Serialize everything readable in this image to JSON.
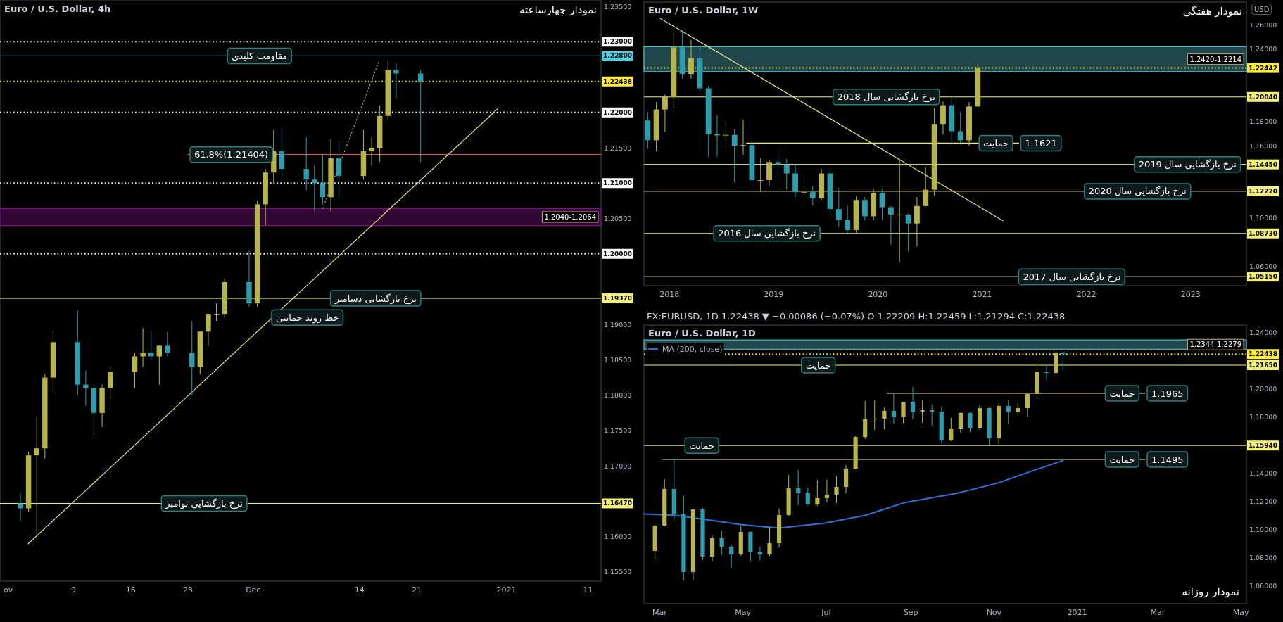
{
  "chart_data": [
    {
      "type": "candlestick",
      "title": "Euro / U.S. Dollar, 4h",
      "subtitle": "نمودار چهارساعته",
      "x": [
        "2020-11-02T12:00",
        "2020-11-03T12:00",
        "2020-11-04T12:00",
        "2020-11-05T12:00",
        "2020-11-06T12:00",
        "2020-11-09T12:00",
        "2020-11-10T12:00",
        "2020-11-11T12:00",
        "2020-11-12T12:00",
        "2020-11-13T12:00",
        "2020-11-16T12:00",
        "2020-11-17T12:00",
        "2020-11-18T12:00",
        "2020-11-19T12:00",
        "2020-11-20T12:00",
        "2020-11-23T12:00",
        "2020-11-24T12:00",
        "2020-11-25T12:00",
        "2020-11-26T12:00",
        "2020-11-27T12:00",
        "2020-11-30T12:00",
        "2020-12-01T12:00",
        "2020-12-02T12:00",
        "2020-12-03T12:00",
        "2020-12-04T12:00",
        "2020-12-07T12:00",
        "2020-12-08T12:00",
        "2020-12-09T12:00",
        "2020-12-10T12:00",
        "2020-12-11T12:00",
        "2020-12-14T12:00",
        "2020-12-15T12:00",
        "2020-12-16T12:00",
        "2020-12-17T12:00",
        "2020-12-18T12:00",
        "2020-12-21T12:00"
      ],
      "ohlc": [
        [
          1.1647,
          1.1661,
          1.1622,
          1.164
        ],
        [
          1.164,
          1.172,
          1.1635,
          1.1715
        ],
        [
          1.1715,
          1.177,
          1.1603,
          1.1725
        ],
        [
          1.1725,
          1.183,
          1.171,
          1.1825
        ],
        [
          1.1825,
          1.189,
          1.1805,
          1.1875
        ],
        [
          1.1875,
          1.192,
          1.18,
          1.1815
        ],
        [
          1.1815,
          1.1835,
          1.1785,
          1.181
        ],
        [
          1.181,
          1.1815,
          1.1745,
          1.1775
        ],
        [
          1.1775,
          1.1815,
          1.1755,
          1.181
        ],
        [
          1.181,
          1.184,
          1.1795,
          1.1833
        ],
        [
          1.1833,
          1.186,
          1.181,
          1.1855
        ],
        [
          1.1855,
          1.1895,
          1.184,
          1.186
        ],
        [
          1.186,
          1.189,
          1.185,
          1.1855
        ],
        [
          1.1855,
          1.187,
          1.1815,
          1.187
        ],
        [
          1.187,
          1.189,
          1.1855,
          1.186
        ],
        [
          1.186,
          1.1905,
          1.18,
          1.184
        ],
        [
          1.184,
          1.189,
          1.183,
          1.189
        ],
        [
          1.189,
          1.1915,
          1.187,
          1.1915
        ],
        [
          1.1915,
          1.193,
          1.1905,
          1.1915
        ],
        [
          1.1915,
          1.1965,
          1.191,
          1.196
        ],
        [
          1.196,
          1.2005,
          1.1925,
          1.193
        ],
        [
          1.193,
          1.2075,
          1.1925,
          1.207
        ],
        [
          1.207,
          1.212,
          1.204,
          1.2115
        ],
        [
          1.2115,
          1.2175,
          1.21,
          1.2145
        ],
        [
          1.2145,
          1.2178,
          1.211,
          1.212
        ],
        [
          1.212,
          1.2165,
          1.209,
          1.2105
        ],
        [
          1.2105,
          1.2125,
          1.206,
          1.21
        ],
        [
          1.21,
          1.214,
          1.207,
          1.208
        ],
        [
          1.208,
          1.2162,
          1.206,
          1.2135
        ],
        [
          1.2135,
          1.216,
          1.208,
          1.211
        ],
        [
          1.211,
          1.2175,
          1.2105,
          1.2145
        ],
        [
          1.2145,
          1.2165,
          1.2125,
          1.215
        ],
        [
          1.215,
          1.221,
          1.213,
          1.2195
        ],
        [
          1.2195,
          1.2273,
          1.219,
          1.226
        ],
        [
          1.226,
          1.227,
          1.222,
          1.2255
        ],
        [
          1.2255,
          1.226,
          1.213,
          1.22438
        ]
      ],
      "xlim": [
        "2020-10-31T00:00",
        "2021-01-12T14:00"
      ],
      "xticks": [
        {
          "value": "2020-11-01",
          "label": "ov"
        },
        {
          "value": "2020-11-09",
          "label": "9"
        },
        {
          "value": "2020-11-16",
          "label": "16"
        },
        {
          "value": "2020-11-23",
          "label": "23"
        },
        {
          "value": "2020-12-01",
          "label": "Dec"
        },
        {
          "value": "2020-12-14",
          "label": "14"
        },
        {
          "value": "2020-12-21",
          "label": "21"
        },
        {
          "value": "2021-01-01",
          "label": "2021"
        },
        {
          "value": "2021-01-11",
          "label": "11"
        }
      ],
      "ylim": [
        1.1537,
        1.2358
      ],
      "yticks": [
        {
          "value": 1.155,
          "label": "1.15500"
        },
        {
          "value": 1.16,
          "label": "1.16000"
        },
        {
          "value": 1.17,
          "label": "1.17000"
        },
        {
          "value": 1.175,
          "label": "1.17500"
        },
        {
          "value": 1.18,
          "label": "1.18000"
        },
        {
          "value": 1.185,
          "label": "1.18500"
        },
        {
          "value": 1.19,
          "label": "1.19000"
        },
        {
          "value": 1.205,
          "label": "1.20500"
        },
        {
          "value": 1.215,
          "label": "1.21500"
        },
        {
          "value": 1.235,
          "label": "1.23500"
        }
      ],
      "ref_lines": [
        {
          "axis": "y",
          "value": 1.23,
          "label": "1.23000",
          "color": "#ffffff",
          "line_style": "dotted"
        },
        {
          "axis": "y",
          "value": 1.228,
          "label": "1.22800",
          "color": "#4dd0e1",
          "line_style": "solid"
        },
        {
          "axis": "y",
          "value": 1.22438,
          "label": "1.22438",
          "color": "#ffeb3b",
          "line_style": "dotted"
        },
        {
          "axis": "y",
          "value": 1.22,
          "label": "1.22000",
          "color": "#ffffff",
          "line_style": "dotted"
        },
        {
          "axis": "y",
          "value": 1.21,
          "label": "1.21000",
          "color": "#ffffff",
          "line_style": "dotted"
        },
        {
          "axis": "y",
          "value": 1.2,
          "label": "1.20000",
          "color": "#ffffff",
          "line_style": "dotted"
        },
        {
          "axis": "y",
          "value": 1.1937,
          "label": "1.19370",
          "color": "#f5f07a",
          "line_style": "solid"
        },
        {
          "axis": "y",
          "value": 1.1647,
          "label": "1.16470",
          "color": "#f5f07a",
          "line_style": "solid"
        }
      ],
      "bands": [
        {
          "axis": "y",
          "from": 1.204,
          "to": 1.2064,
          "label": "1.2040-1.2064",
          "color": "#7b1283"
        }
      ],
      "series": [
        {
          "type": "line",
          "x": [
            "2020-11-03T11:00",
            "2020-12-30T22:00"
          ],
          "values": [
            1.159,
            1.2205
          ],
          "color": "#e6e68a",
          "line_style": "solid"
        },
        {
          "type": "line",
          "x": [
            "2020-12-09T12:00",
            "2020-12-16T10:00"
          ],
          "values": [
            1.2064,
            1.2273
          ],
          "color": "#9e9e9e",
          "line_style": "dotted"
        },
        {
          "type": "line",
          "x": [
            "2020-11-23T00:00",
            "2021-01-12T14:00"
          ],
          "values": [
            1.21404,
            1.21404
          ],
          "color": "#e04e5e",
          "line_style": "solid"
        }
      ],
      "annotations": [
        {
          "text": "مقاومت کلیدی",
          "x": "2020-11-27T14:00",
          "y": 1.228
        },
        {
          "text": "61.8%(1.21404)",
          "x": "2020-11-23T00:00",
          "y": 1.21404
        },
        {
          "text": "نرخ بازگشایی دسامبر",
          "x": "2020-12-10T05:00",
          "y": 1.1937
        },
        {
          "text": "خط روند حمایتی",
          "x": "2020-12-03T00:00",
          "y": 1.191
        },
        {
          "text": "نرخ بازگشایی نوامبر",
          "x": "2020-11-19T12:00",
          "y": 1.1647
        }
      ]
    },
    {
      "type": "candlestick",
      "title": "Euro / U.S. Dollar, 1W",
      "subtitle": "نمودار هفتگی",
      "ylabel": "USD",
      "x": [
        2017.792,
        2017.875,
        2017.958,
        2018.042,
        2018.125,
        2018.208,
        2018.292,
        2018.375,
        2018.458,
        2018.542,
        2018.625,
        2018.708,
        2018.792,
        2018.875,
        2018.958,
        2019.042,
        2019.125,
        2019.208,
        2019.292,
        2019.375,
        2019.458,
        2019.542,
        2019.625,
        2019.708,
        2019.792,
        2019.875,
        2019.958,
        2020.042,
        2020.125,
        2020.208,
        2020.292,
        2020.375,
        2020.458,
        2020.542,
        2020.625,
        2020.708,
        2020.792,
        2020.875,
        2020.958
      ],
      "ohlc": [
        [
          1.181,
          1.188,
          1.1575,
          1.1645
        ],
        [
          1.1645,
          1.196,
          1.1555,
          1.19
        ],
        [
          1.19,
          1.2025,
          1.1715,
          1.2005
        ],
        [
          1.2005,
          1.2535,
          1.1915,
          1.2415
        ],
        [
          1.2415,
          1.2555,
          1.2155,
          1.2195
        ],
        [
          1.2195,
          1.2475,
          1.2155,
          1.2325
        ],
        [
          1.2325,
          1.2415,
          1.2055,
          1.2075
        ],
        [
          1.2075,
          1.2095,
          1.151,
          1.1695
        ],
        [
          1.1695,
          1.185,
          1.151,
          1.1685
        ],
        [
          1.1685,
          1.179,
          1.1575,
          1.169
        ],
        [
          1.169,
          1.1735,
          1.13,
          1.16
        ],
        [
          1.16,
          1.1815,
          1.1525,
          1.1605
        ],
        [
          1.1605,
          1.1625,
          1.13,
          1.1315
        ],
        [
          1.1315,
          1.15,
          1.1215,
          1.1315
        ],
        [
          1.1315,
          1.1485,
          1.127,
          1.1465
        ],
        [
          1.1465,
          1.157,
          1.129,
          1.1445
        ],
        [
          1.1445,
          1.149,
          1.1235,
          1.137
        ],
        [
          1.137,
          1.145,
          1.1175,
          1.1215
        ],
        [
          1.1215,
          1.1325,
          1.111,
          1.1215
        ],
        [
          1.1215,
          1.1265,
          1.1105,
          1.1165
        ],
        [
          1.1165,
          1.141,
          1.115,
          1.137
        ],
        [
          1.137,
          1.141,
          1.1025,
          1.1075
        ],
        [
          1.1075,
          1.125,
          1.0925,
          1.0985
        ],
        [
          1.0985,
          1.111,
          1.088,
          1.09
        ],
        [
          1.09,
          1.118,
          1.088,
          1.115
        ],
        [
          1.115,
          1.1175,
          1.098,
          1.1015
        ],
        [
          1.1015,
          1.124,
          1.098,
          1.121
        ],
        [
          1.121,
          1.124,
          1.099,
          1.109
        ],
        [
          1.109,
          1.11,
          1.078,
          1.103
        ],
        [
          1.103,
          1.1495,
          1.0635,
          1.103
        ],
        [
          1.103,
          1.104,
          1.0725,
          1.0955
        ],
        [
          1.0955,
          1.1175,
          1.0765,
          1.11
        ],
        [
          1.11,
          1.142,
          1.1095,
          1.1235
        ],
        [
          1.1235,
          1.191,
          1.1185,
          1.178
        ],
        [
          1.178,
          1.1965,
          1.1695,
          1.1935
        ],
        [
          1.1935,
          1.201,
          1.161,
          1.172
        ],
        [
          1.172,
          1.188,
          1.161,
          1.1645
        ],
        [
          1.1645,
          1.196,
          1.16,
          1.1925
        ],
        [
          1.1925,
          1.2273,
          1.192,
          1.22442
        ]
      ],
      "xlim": [
        2017.756,
        2023.535
      ],
      "xticks": [
        2018,
        2019,
        2020,
        2021,
        2022,
        2023
      ],
      "ylim": [
        1.044,
        1.279
      ],
      "yticks": [
        {
          "value": 1.06,
          "label": "1.06000"
        },
        {
          "value": 1.1,
          "label": "1.10000"
        },
        {
          "value": 1.16,
          "label": "1.16000"
        },
        {
          "value": 1.18,
          "label": "1.18000"
        },
        {
          "value": 1.24,
          "label": "1.24000"
        },
        {
          "value": 1.26,
          "label": "1.26000"
        }
      ],
      "ref_lines": [
        {
          "axis": "y",
          "value": 1.22442,
          "label": "1.22442",
          "color": "#ffeb3b",
          "line_style": "dotted"
        },
        {
          "axis": "y",
          "value": 1.2004,
          "label": "1.20040",
          "color": "#f5f07a",
          "line_style": "solid"
        },
        {
          "axis": "y",
          "value": 1.1445,
          "label": "1.14450",
          "color": "#f5f07a",
          "line_style": "solid"
        },
        {
          "axis": "y",
          "value": 1.1222,
          "label": "1.12220",
          "color": "#f5f07a",
          "line_style": "solid"
        },
        {
          "axis": "y",
          "value": 1.0873,
          "label": "1.08730",
          "color": "#f5f07a",
          "line_style": "solid"
        },
        {
          "axis": "y",
          "value": 1.0515,
          "label": "1.05150",
          "color": "#f5f07a",
          "line_style": "solid"
        }
      ],
      "bands": [
        {
          "axis": "y",
          "from": 1.2214,
          "to": 1.242,
          "label": "1.2420-1.2214",
          "color": "#4fb3bf"
        }
      ],
      "series": [
        {
          "type": "line",
          "x": [
            2017.913,
            2021.2
          ],
          "values": [
            1.2655,
            1.0978
          ],
          "color": "#e6e68a",
          "line_style": "solid"
        },
        {
          "type": "line",
          "x": [
            2018.74,
            2021.35
          ],
          "values": [
            1.1621,
            1.1621
          ],
          "color": "#e6e68a",
          "line_style": "solid"
        }
      ],
      "annotations": [
        {
          "text": "نرخ بازگشایی سال 2018",
          "x": 2019.55,
          "y": 1.2004
        },
        {
          "text": "1.1621",
          "x": 2021.35,
          "y": 1.1621
        },
        {
          "text": "حمایت",
          "x": 2020.95,
          "y": 1.1621
        },
        {
          "text": "نرخ بازگشایی سال 2019",
          "x": 2022.44,
          "y": 1.1445
        },
        {
          "text": "نرخ بازگشایی سال 2016",
          "x": 2018.405,
          "y": 1.0873
        },
        {
          "text": "نرخ بازگشایی سال 2020",
          "x": 2021.96,
          "y": 1.1222
        },
        {
          "text": "نرخ بازگشایی سال 2017",
          "x": 2021.33,
          "y": 1.0515
        }
      ]
    },
    {
      "type": "candlestick",
      "title": "Euro / U.S. Dollar, 1D",
      "legend": "top left",
      "x": [
        "2020-02-26T12:00",
        "2020-03-04T12:00",
        "2020-03-11T12:00",
        "2020-03-18T12:00",
        "2020-03-25T12:00",
        "2020-04-01T12:00",
        "2020-04-08T12:00",
        "2020-04-15T12:00",
        "2020-04-22T12:00",
        "2020-04-29T12:00",
        "2020-05-06T12:00",
        "2020-05-13T12:00",
        "2020-05-20T12:00",
        "2020-05-27T12:00",
        "2020-06-03T12:00",
        "2020-06-10T12:00",
        "2020-06-17T12:00",
        "2020-06-24T12:00",
        "2020-07-01T12:00",
        "2020-07-08T12:00",
        "2020-07-15T12:00",
        "2020-07-22T12:00",
        "2020-07-29T12:00",
        "2020-08-05T12:00",
        "2020-08-12T12:00",
        "2020-08-19T12:00",
        "2020-08-26T12:00",
        "2020-09-02T12:00",
        "2020-09-09T12:00",
        "2020-09-16T12:00",
        "2020-09-23T12:00",
        "2020-09-30T12:00",
        "2020-10-07T12:00",
        "2020-10-14T12:00",
        "2020-10-21T12:00",
        "2020-10-28T12:00",
        "2020-11-04T12:00",
        "2020-11-11T12:00",
        "2020-11-18T12:00",
        "2020-11-25T12:00",
        "2020-12-02T12:00",
        "2020-12-09T12:00",
        "2020-12-16T12:00",
        "2020-12-21T12:00"
      ],
      "ohlc": [
        [
          1.0845,
          1.103,
          1.0785,
          1.1025
        ],
        [
          1.1025,
          1.1355,
          1.102,
          1.1285
        ],
        [
          1.1285,
          1.1495,
          1.1055,
          1.1105
        ],
        [
          1.1105,
          1.1235,
          1.0635,
          1.0695
        ],
        [
          1.0695,
          1.1145,
          1.0636,
          1.114
        ],
        [
          1.114,
          1.115,
          1.078,
          1.0805
        ],
        [
          1.0805,
          1.0955,
          1.077,
          1.0935
        ],
        [
          1.0935,
          1.099,
          1.0815,
          1.0875
        ],
        [
          1.0875,
          1.089,
          1.0725,
          1.082
        ],
        [
          1.082,
          1.102,
          1.081,
          1.098
        ],
        [
          1.098,
          1.0985,
          1.077,
          1.084
        ],
        [
          1.084,
          1.0875,
          1.0775,
          1.082
        ],
        [
          1.082,
          1.101,
          1.081,
          1.09
        ],
        [
          1.09,
          1.1145,
          1.087,
          1.11
        ],
        [
          1.11,
          1.1385,
          1.1095,
          1.129
        ],
        [
          1.129,
          1.142,
          1.117,
          1.1255
        ],
        [
          1.1255,
          1.1295,
          1.117,
          1.1175
        ],
        [
          1.1175,
          1.135,
          1.1165,
          1.122
        ],
        [
          1.122,
          1.135,
          1.119,
          1.1245
        ],
        [
          1.1245,
          1.1375,
          1.1185,
          1.13
        ],
        [
          1.13,
          1.1455,
          1.1255,
          1.143
        ],
        [
          1.143,
          1.166,
          1.1425,
          1.1655
        ],
        [
          1.1655,
          1.191,
          1.164,
          1.178
        ],
        [
          1.178,
          1.1915,
          1.1705,
          1.1785
        ],
        [
          1.1785,
          1.1865,
          1.171,
          1.184
        ],
        [
          1.184,
          1.1965,
          1.175,
          1.1795
        ],
        [
          1.1795,
          1.1905,
          1.1755,
          1.1905
        ],
        [
          1.1905,
          1.2011,
          1.178,
          1.1835
        ],
        [
          1.1835,
          1.1915,
          1.1755,
          1.1845
        ],
        [
          1.1845,
          1.1885,
          1.1735,
          1.1835
        ],
        [
          1.1835,
          1.187,
          1.1612,
          1.163
        ],
        [
          1.163,
          1.179,
          1.1625,
          1.1715
        ],
        [
          1.1715,
          1.183,
          1.1685,
          1.1825
        ],
        [
          1.1825,
          1.183,
          1.169,
          1.172
        ],
        [
          1.172,
          1.188,
          1.1705,
          1.186
        ],
        [
          1.186,
          1.187,
          1.1602,
          1.1645
        ],
        [
          1.1645,
          1.189,
          1.1603,
          1.1875
        ],
        [
          1.1875,
          1.192,
          1.1745,
          1.1833
        ],
        [
          1.1833,
          1.1895,
          1.181,
          1.186
        ],
        [
          1.186,
          1.1965,
          1.18,
          1.196
        ],
        [
          1.196,
          1.2178,
          1.1925,
          1.212
        ],
        [
          1.212,
          1.2165,
          1.206,
          1.211
        ],
        [
          1.211,
          1.2273,
          1.2105,
          1.2255
        ],
        [
          1.2255,
          1.226,
          1.213,
          1.22438
        ]
      ],
      "xlim": [
        "2020-02-18T10:00",
        "2021-05-05"
      ],
      "xticks": [
        {
          "value": "2020-03-01",
          "label": "Mar"
        },
        {
          "value": "2020-05-01",
          "label": "May"
        },
        {
          "value": "2020-07-01",
          "label": "Jul"
        },
        {
          "value": "2020-09-01",
          "label": "Sep"
        },
        {
          "value": "2020-11-01",
          "label": "Nov"
        },
        {
          "value": "2021-01-01",
          "label": "2021"
        },
        {
          "value": "2021-03-01",
          "label": "Mar"
        },
        {
          "value": "2021-05-01",
          "label": "May"
        }
      ],
      "ylim": [
        1.047,
        1.245
      ],
      "yticks": [
        {
          "value": 1.06,
          "label": "1.06000"
        },
        {
          "value": 1.08,
          "label": "1.08000"
        },
        {
          "value": 1.1,
          "label": "1.10000"
        },
        {
          "value": 1.12,
          "label": "1.12000"
        },
        {
          "value": 1.14,
          "label": "1.14000"
        },
        {
          "value": 1.18,
          "label": "1.18000"
        },
        {
          "value": 1.2,
          "label": "1.20000"
        },
        {
          "value": 1.24,
          "label": "1.24000"
        }
      ],
      "ref_lines": [
        {
          "axis": "y",
          "value": 1.22438,
          "label": "1.22438",
          "color": "#ffeb3b",
          "line_style": "dotted"
        },
        {
          "axis": "y",
          "value": 1.2165,
          "label": "1.21650",
          "color": "#f5f07a",
          "line_style": "solid"
        },
        {
          "axis": "y",
          "value": 1.1594,
          "label": "1.15940",
          "color": "#f5f07a",
          "line_style": "solid"
        }
      ],
      "bands": [
        {
          "axis": "y",
          "from": 1.2279,
          "to": 1.2344,
          "label": "1.2344-1.2279",
          "color": "#4fb3bf"
        }
      ],
      "series": [
        {
          "type": "line",
          "name": "MA (200, close)",
          "color": "#2f6fd6",
          "line_style": "solid",
          "x": [
            "2020-02-18T10:00",
            "2020-03-12T14:00",
            "2020-04-30T00:00",
            "2020-05-27T12:00",
            "2020-06-30T00:00",
            "2020-07-30T00:00",
            "2020-08-27T00:00",
            "2020-10-05T00:00",
            "2020-11-04T00:00",
            "2020-11-27T00:00",
            "2020-12-21T12:00"
          ],
          "values": [
            1.1108,
            1.1099,
            1.1031,
            1.1008,
            1.1043,
            1.1099,
            1.1187,
            1.1255,
            1.1328,
            1.1407,
            1.1487
          ]
        },
        {
          "type": "line",
          "x": [
            "2020-08-14T14:00",
            "2021-02-19T17:00"
          ],
          "values": [
            1.1965,
            1.1965
          ],
          "color": "#e6e68a",
          "line_style": "solid"
        },
        {
          "type": "line",
          "x": [
            "2020-03-03T02:00",
            "2021-02-19T17:00"
          ],
          "values": [
            1.1495,
            1.1495
          ],
          "color": "#e6e68a",
          "line_style": "solid"
        }
      ],
      "annotations": [
        "FX:EURUSD, 1D 1.22438 ▼ −0.00086 (−0.07%) O:1.22209 H:1.22459 L:1.21294 C:1.22438",
        "نمودار روزانه",
        {
          "text": "حمایت",
          "x": "2020-06-11T07:00",
          "y": 1.2165
        },
        {
          "text": "حمایت",
          "x": "2020-03-17T22:00",
          "y": 1.1594
        },
        {
          "text": "1.1965",
          "x": "2021-02-19T17:00",
          "y": 1.1965
        },
        {
          "text": "حمایت",
          "x": "2021-01-20T00:00",
          "y": 1.1965
        },
        {
          "text": "1.1495",
          "x": "2021-02-19T17:00",
          "y": 1.1495
        },
        {
          "text": "حمایت",
          "x": "2021-01-20T00:00",
          "y": 1.1495
        }
      ]
    }
  ]
}
